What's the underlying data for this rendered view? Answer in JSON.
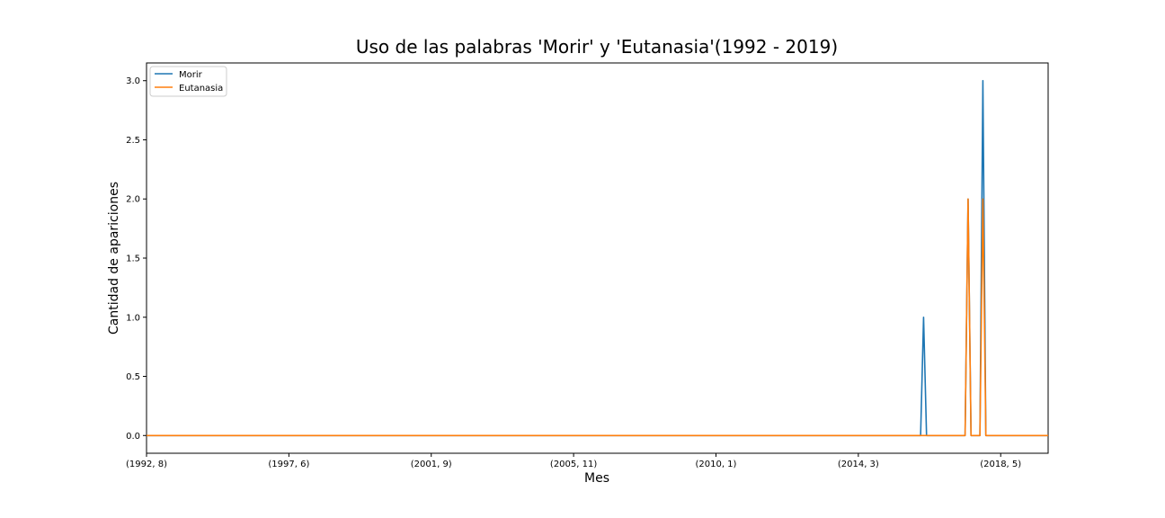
{
  "chart_data": {
    "type": "line",
    "title": "Uso de las palabras 'Morir' y 'Eutanasia'(1992 - 2019)",
    "xlabel": "Mes",
    "ylabel": "Cantidad de apariciones",
    "x_start": "(1992, 8)",
    "x_end": "2019, 12",
    "x_ticks": [
      {
        "label": "(1992, 8)",
        "index": 0
      },
      {
        "label": "(1997, 6)",
        "index": 48
      },
      {
        "label": "(2001, 9)",
        "index": 96
      },
      {
        "label": "(2005, 11)",
        "index": 144
      },
      {
        "label": "(2010, 1)",
        "index": 192
      },
      {
        "label": "(2014, 3)",
        "index": 240
      },
      {
        "label": "(2018, 5)",
        "index": 288
      }
    ],
    "x_count": 305,
    "y_ticks": [
      "0.0",
      "0.5",
      "1.0",
      "1.5",
      "2.0",
      "2.5",
      "3.0"
    ],
    "ylim": [
      -0.15,
      3.15
    ],
    "grid": false,
    "legend_position": "upper-left",
    "series": [
      {
        "name": "Morir",
        "color": "#1f77b4",
        "points": [
          [
            0,
            0
          ],
          [
            261,
            0
          ],
          [
            262,
            1
          ],
          [
            263,
            0
          ],
          [
            276,
            0
          ],
          [
            277,
            2
          ],
          [
            278,
            0
          ],
          [
            281,
            0
          ],
          [
            282,
            3
          ],
          [
            283,
            0
          ],
          [
            304,
            0
          ]
        ]
      },
      {
        "name": "Eutanasia",
        "color": "#ff7f0e",
        "points": [
          [
            0,
            0
          ],
          [
            276,
            0
          ],
          [
            277,
            2
          ],
          [
            278,
            0
          ],
          [
            281,
            0
          ],
          [
            282,
            2
          ],
          [
            283,
            0
          ],
          [
            304,
            0
          ]
        ]
      }
    ]
  }
}
